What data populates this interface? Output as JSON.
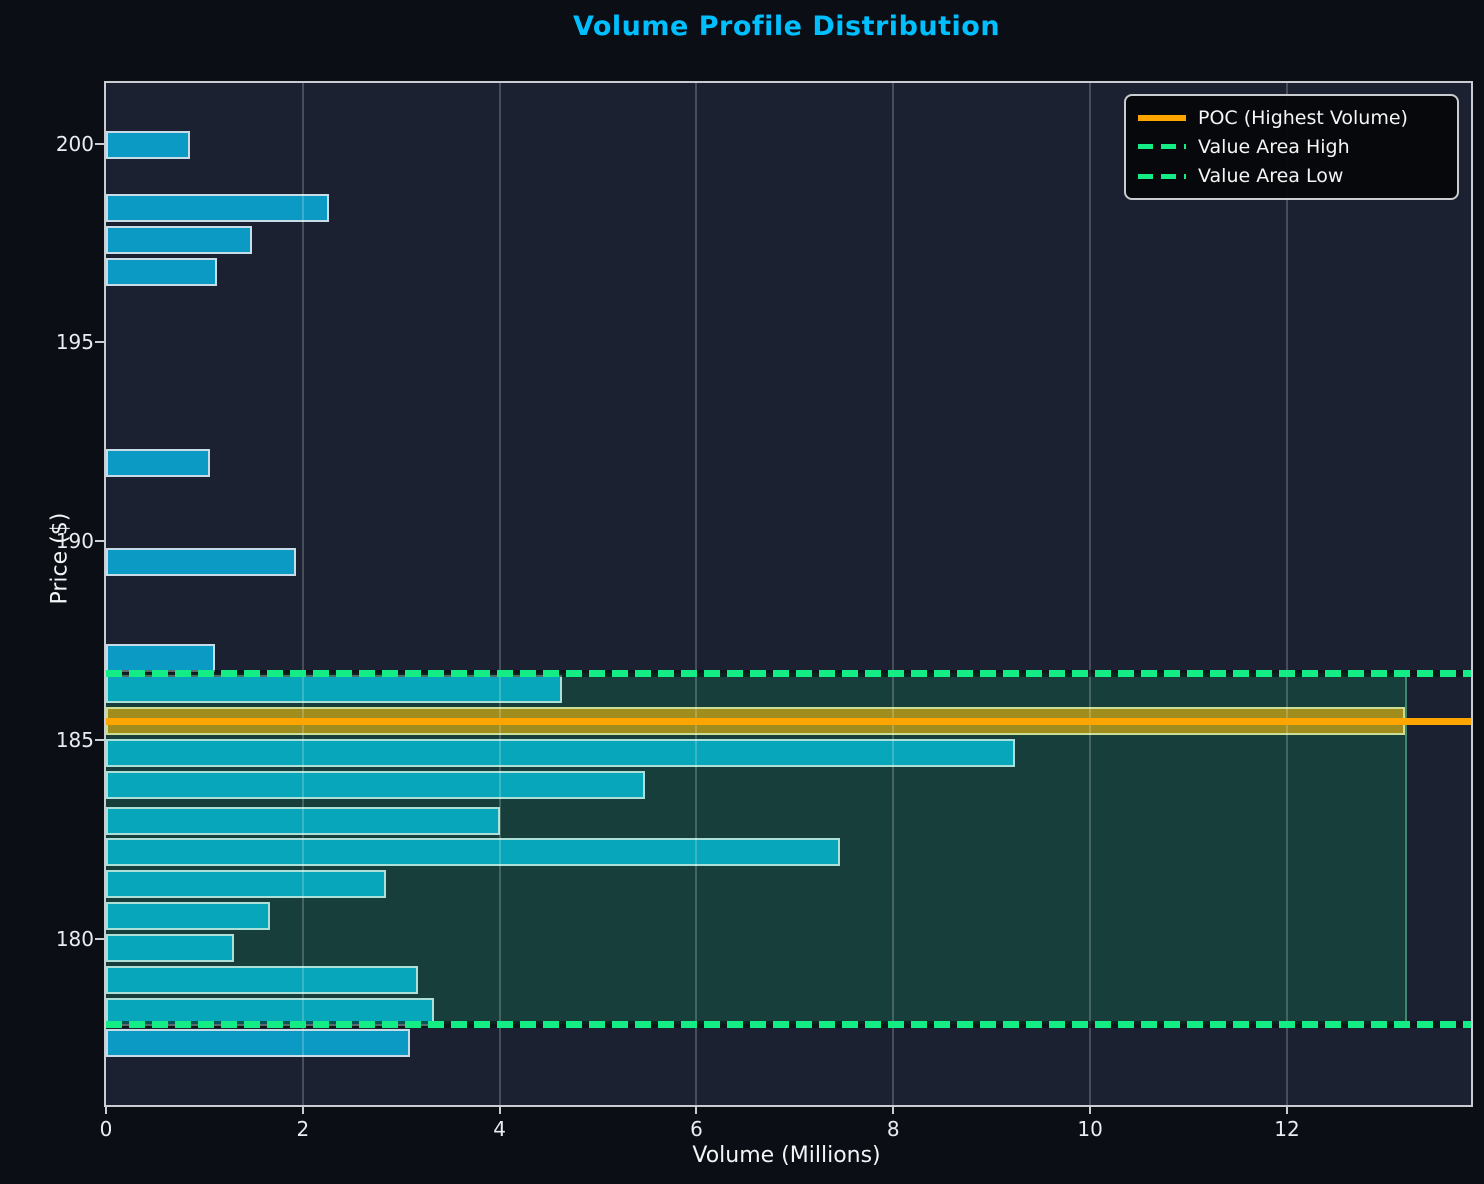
{
  "chart_data": {
    "type": "bar",
    "orientation": "horizontal",
    "title": "Volume Profile Distribution",
    "xlabel": "Volume (Millions)",
    "ylabel": "Price ($)",
    "xlim": [
      0,
      13.87
    ],
    "ylim": [
      175.85,
      201.55
    ],
    "x_ticks": [
      0,
      2,
      4,
      6,
      8,
      10,
      12
    ],
    "y_ticks": [
      180,
      185,
      190,
      195,
      200
    ],
    "grid": "vertical-major-only",
    "legend_position": "upper-right",
    "prices": [
      200.0,
      198.4,
      197.6,
      196.8,
      192.0,
      189.5,
      187.1,
      186.3,
      185.5,
      184.7,
      183.9,
      183.0,
      182.2,
      181.4,
      180.6,
      179.8,
      179.0,
      178.2,
      177.4
    ],
    "volumes_millions": [
      0.85,
      2.27,
      1.48,
      1.13,
      1.06,
      1.93,
      1.11,
      4.63,
      13.2,
      9.24,
      5.48,
      4.0,
      7.46,
      2.85,
      1.67,
      1.3,
      3.17,
      3.33,
      3.09
    ],
    "poc": {
      "price": 185.5,
      "volume_millions": 13.2
    },
    "value_area": {
      "high": 186.72,
      "low": 177.88
    },
    "colors": {
      "title": "#00bfff",
      "bar": "#0a9ac4",
      "bar_edge": "#d8e2e8",
      "poc_bar": "#ffa500",
      "poc_line": "#ffa500",
      "value_area_line": "#14ec86",
      "value_area_fill": "#00f082",
      "plot_bg": "#1b2130",
      "figure_bg": "#0b0e15"
    }
  },
  "legend": {
    "items": [
      {
        "label": "POC (Highest Volume)",
        "style": "solid",
        "color": "#ffa500"
      },
      {
        "label": "Value Area High",
        "style": "dashed",
        "color": "#14ec86"
      },
      {
        "label": "Value Area Low",
        "style": "dashed",
        "color": "#14ec86"
      }
    ]
  }
}
